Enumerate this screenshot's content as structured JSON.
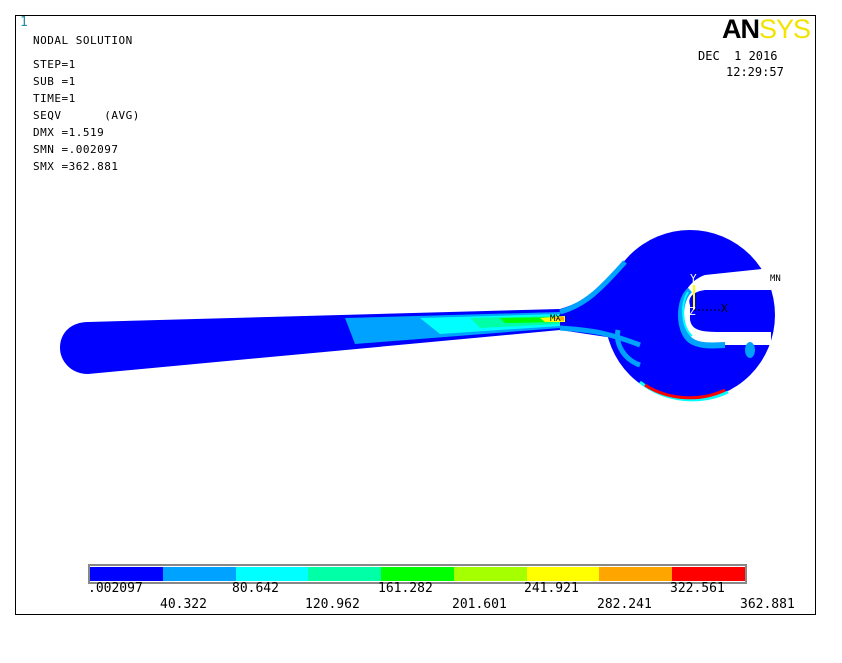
{
  "window_number": "1",
  "header": {
    "title": "NODAL SOLUTION",
    "step": "STEP=1",
    "sub": "SUB =1",
    "time": "TIME=1",
    "result": "SEQV      (AVG)",
    "dmx": "DMX =1.519",
    "smn": "SMN =.002097",
    "smx": "SMX =362.881"
  },
  "logo": {
    "part1": "AN",
    "part2": "SYS"
  },
  "date": "DEC  1 2016",
  "time": "12:29:57",
  "triad": {
    "y": "Y",
    "z": "Z",
    "x": "X"
  },
  "markers": {
    "mn": "MN",
    "mx": "MX"
  },
  "legend": {
    "colors": [
      "#0000ff",
      "#00a2ff",
      "#00ffff",
      "#00ffa6",
      "#00ff00",
      "#a6ff00",
      "#ffff00",
      "#ffa500",
      "#ff0000"
    ],
    "labels_bottom": [
      ".002097",
      "80.642",
      "161.282",
      "241.921",
      "322.561"
    ],
    "labels_top": [
      "40.322",
      "120.962",
      "201.601",
      "282.241",
      "362.881"
    ]
  }
}
